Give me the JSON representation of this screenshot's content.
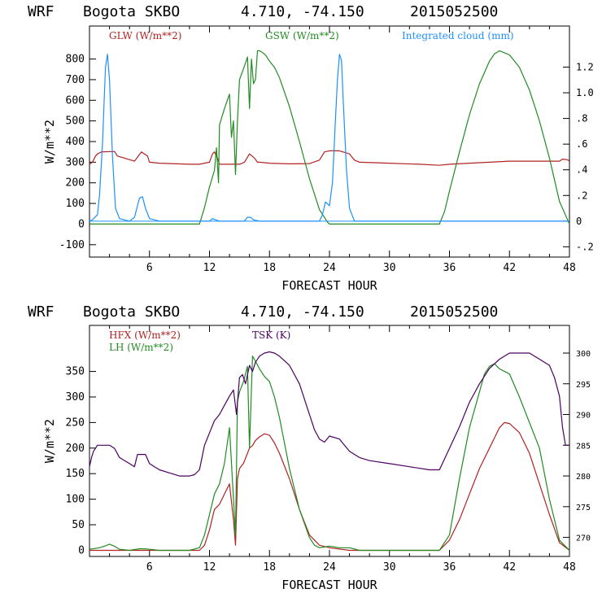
{
  "charts": [
    {
      "title": {
        "model": "WRF",
        "station": "Bogota SKBO",
        "coords": "4.710, -74.150",
        "date": "2015052500"
      },
      "xlabel": "FORECAST HOUR",
      "ylabel": "W/m**2",
      "xticks": [
        "6",
        "12",
        "18",
        "24",
        "30",
        "36",
        "42",
        "48"
      ],
      "yticks": [
        "-100",
        "0",
        "100",
        "200",
        "300",
        "400",
        "500",
        "600",
        "700",
        "800"
      ],
      "rticks": [
        "-.2",
        "0",
        ".2",
        ".4",
        ".6",
        ".8",
        "1.0",
        "1.2"
      ],
      "legend": [
        {
          "label": "GLW (W/m**2)",
          "color": "#b22222"
        },
        {
          "label": "GSW (W/m**2)",
          "color": "#228b22"
        },
        {
          "label": "Integrated cloud (mm)",
          "color": "#1e90ff"
        }
      ]
    },
    {
      "title": {
        "model": "WRF",
        "station": "Bogota SKBO",
        "coords": "4.710, -74.150",
        "date": "2015052500"
      },
      "xlabel": "FORECAST HOUR",
      "ylabel": "W/m**2",
      "xticks": [
        "6",
        "12",
        "18",
        "24",
        "30",
        "36",
        "42",
        "48"
      ],
      "yticks": [
        "0",
        "50",
        "100",
        "150",
        "200",
        "250",
        "300",
        "350"
      ],
      "rticks": [
        "270",
        "275",
        "280",
        "285",
        "290",
        "295",
        "300"
      ],
      "legend": [
        {
          "label": "HFX (W/m**2)",
          "color": "#b22222"
        },
        {
          "label": "LH  (W/m**2)",
          "color": "#228b22"
        },
        {
          "label": "TSK (K)",
          "color": "#4b0060"
        }
      ]
    }
  ],
  "chart_data": [
    {
      "type": "line",
      "title": "WRF Bogota SKBO 4.710, -74.150 2015052500",
      "xlabel": "FORECAST HOUR",
      "ylabel": "W/m**2",
      "xlim": [
        0,
        48
      ],
      "ylim": [
        -160,
        960
      ],
      "y2lim": [
        -0.28,
        1.52
      ],
      "series": [
        {
          "name": "GLW (W/m**2)",
          "axis": "left",
          "color": "#b22222",
          "x": [
            0,
            0.3,
            0.6,
            0.8,
            1.2,
            2.5,
            2.8,
            4.5,
            5.2,
            5.8,
            6,
            7,
            10,
            11,
            12,
            12.3,
            12.5,
            12.8,
            13,
            14,
            15,
            15.5,
            16,
            16.5,
            16.8,
            17,
            18,
            20,
            22,
            23,
            23.5,
            24,
            25,
            26,
            26.5,
            27,
            30,
            33,
            35,
            36,
            38,
            40,
            42,
            44,
            46,
            47,
            47.3,
            47.8,
            48
          ],
          "y": [
            290,
            300,
            330,
            340,
            350,
            352,
            330,
            305,
            350,
            330,
            300,
            295,
            290,
            290,
            300,
            340,
            350,
            320,
            290,
            290,
            290,
            300,
            340,
            320,
            300,
            300,
            295,
            292,
            293,
            310,
            350,
            355,
            355,
            340,
            310,
            300,
            295,
            290,
            285,
            290,
            295,
            300,
            305,
            305,
            305,
            305,
            315,
            312,
            305
          ]
        },
        {
          "name": "GSW (W/m**2)",
          "axis": "left",
          "color": "#228b22",
          "x": [
            0,
            11,
            11.5,
            12,
            12.5,
            12.7,
            12.9,
            13,
            13.5,
            14,
            14.2,
            14.4,
            14.6,
            14.8,
            15,
            15.3,
            15.6,
            15.8,
            16,
            16.2,
            16.4,
            16.6,
            16.8,
            17,
            17.2,
            17.6,
            18,
            18.5,
            19,
            20,
            21,
            22,
            23,
            23.8,
            24,
            35,
            35.5,
            36,
            37,
            38,
            39,
            40,
            40.5,
            41,
            42,
            43,
            44,
            45,
            46,
            47,
            48
          ],
          "y": [
            0,
            0,
            80,
            180,
            260,
            370,
            200,
            480,
            560,
            630,
            420,
            500,
            240,
            500,
            700,
            740,
            780,
            810,
            560,
            800,
            680,
            700,
            840,
            840,
            835,
            820,
            790,
            760,
            710,
            570,
            400,
            220,
            70,
            10,
            0,
            0,
            60,
            160,
            350,
            530,
            680,
            790,
            825,
            840,
            820,
            760,
            650,
            500,
            320,
            110,
            0
          ]
        },
        {
          "name": "Integrated cloud (mm)",
          "axis": "right",
          "color": "#1e90ff",
          "x": [
            0,
            0.3,
            0.8,
            1,
            1.3,
            1.5,
            1.6,
            1.8,
            2,
            2.3,
            2.6,
            3,
            4,
            4.5,
            4.8,
            5,
            5.3,
            5.6,
            6,
            7,
            12,
            12.3,
            12.6,
            13,
            15.5,
            15.8,
            16.1,
            16.4,
            17,
            23,
            23.3,
            23.6,
            24,
            24.3,
            24.6,
            24.8,
            25,
            25.2,
            25.4,
            25.7,
            26,
            26.5,
            48
          ],
          "y": [
            0,
            0.01,
            0.05,
            0.2,
            0.6,
            1.0,
            1.2,
            1.3,
            1.1,
            0.5,
            0.1,
            0.02,
            0.0,
            0.03,
            0.12,
            0.18,
            0.19,
            0.1,
            0.02,
            0.0,
            0.0,
            0.02,
            0.01,
            0.0,
            0.0,
            0.03,
            0.03,
            0.01,
            0.0,
            0.0,
            0.05,
            0.15,
            0.12,
            0.3,
            0.8,
            1.1,
            1.3,
            1.25,
            0.9,
            0.4,
            0.1,
            0.0,
            0.0
          ]
        }
      ]
    },
    {
      "type": "line",
      "title": "WRF Bogota SKBO 4.710, -74.150 2015052500",
      "xlabel": "FORECAST HOUR",
      "ylabel": "W/m**2",
      "xlim": [
        0,
        48
      ],
      "ylim": [
        -12,
        440
      ],
      "y2lim": [
        266.9,
        304.5
      ],
      "series": [
        {
          "name": "HFX (W/m**2)",
          "axis": "left",
          "color": "#b22222",
          "x": [
            0,
            1,
            2,
            3,
            4,
            5,
            6,
            7,
            10,
            11,
            11.5,
            12,
            12.5,
            13,
            13.5,
            14,
            14.4,
            14.6,
            14.8,
            15,
            15.4,
            15.8,
            16,
            16.3,
            16.6,
            17,
            17.5,
            18,
            18.5,
            19,
            20,
            21,
            22,
            23,
            24,
            26,
            30,
            34,
            35,
            36,
            37,
            38,
            39,
            40,
            40.5,
            41,
            41.5,
            42,
            43,
            44,
            45,
            46,
            47,
            48
          ],
          "y": [
            0,
            0,
            0,
            0,
            0,
            0,
            0,
            0,
            0,
            0,
            10,
            40,
            80,
            90,
            110,
            130,
            60,
            10,
            140,
            160,
            170,
            190,
            200,
            205,
            215,
            222,
            228,
            225,
            210,
            190,
            140,
            80,
            30,
            10,
            5,
            0,
            0,
            0,
            0,
            20,
            60,
            110,
            160,
            200,
            220,
            240,
            250,
            248,
            230,
            190,
            130,
            70,
            15,
            0
          ]
        },
        {
          "name": "LH  (W/m**2)",
          "axis": "left",
          "color": "#228b22",
          "x": [
            0,
            1,
            1.5,
            2,
            2.5,
            3,
            4,
            5,
            5.5,
            6,
            7,
            10,
            11,
            11.5,
            12,
            12.5,
            13,
            13.5,
            14,
            14.4,
            14.6,
            14.8,
            15,
            15.4,
            15.8,
            16,
            16.3,
            16.6,
            17,
            17.5,
            18,
            18.5,
            19,
            20,
            21,
            22,
            22.5,
            23,
            24,
            25,
            26,
            27,
            30,
            35,
            36,
            37,
            38,
            39,
            39.5,
            40,
            40.5,
            41,
            42,
            43,
            44,
            45,
            46,
            47,
            48
          ],
          "y": [
            2,
            5,
            8,
            12,
            8,
            2,
            0,
            3,
            3,
            2,
            0,
            0,
            5,
            30,
            70,
            110,
            130,
            170,
            240,
            100,
            30,
            290,
            310,
            330,
            360,
            200,
            380,
            370,
            355,
            340,
            330,
            300,
            260,
            160,
            80,
            25,
            10,
            5,
            8,
            5,
            5,
            0,
            0,
            0,
            30,
            140,
            240,
            310,
            345,
            360,
            365,
            355,
            345,
            300,
            250,
            200,
            100,
            20,
            0
          ]
        },
        {
          "name": "TSK (K)",
          "axis": "right",
          "color": "#4b0060",
          "x": [
            0,
            0.2,
            0.4,
            0.8,
            1.2,
            2,
            2.5,
            3,
            4,
            4.5,
            4.8,
            5.2,
            5.6,
            6,
            6.5,
            7,
            8,
            9,
            10,
            10.5,
            11,
            11.5,
            12,
            12.5,
            13,
            13.5,
            14,
            14.4,
            14.7,
            15,
            15.3,
            15.6,
            16,
            16.3,
            16.6,
            17,
            17.5,
            18,
            18.5,
            19,
            20,
            21,
            22,
            22.5,
            23,
            23.5,
            24,
            25,
            25.5,
            26,
            27,
            28,
            30,
            32,
            34,
            35,
            36,
            37,
            38,
            39,
            40,
            41,
            42,
            43,
            44,
            45,
            46,
            46.5,
            47,
            47.3,
            47.6,
            48
          ],
          "y": [
            281.5,
            283,
            284,
            285,
            285,
            285,
            284.5,
            283,
            282,
            281.5,
            283.5,
            283.5,
            283.5,
            282,
            281.5,
            281,
            280.5,
            280,
            280,
            280.2,
            281,
            285,
            287,
            289,
            290,
            291.5,
            293,
            294,
            290,
            296,
            296.5,
            295,
            298,
            297,
            298.5,
            299.5,
            300,
            300.2,
            300,
            299.5,
            298,
            295,
            290,
            287.5,
            286,
            285.5,
            286.5,
            286,
            285,
            284,
            283,
            282.5,
            282,
            281.5,
            281,
            281,
            284.5,
            288,
            292,
            295,
            297.5,
            299,
            300,
            300,
            300,
            299,
            298,
            296,
            293,
            288,
            285,
            285
          ]
        }
      ]
    }
  ]
}
